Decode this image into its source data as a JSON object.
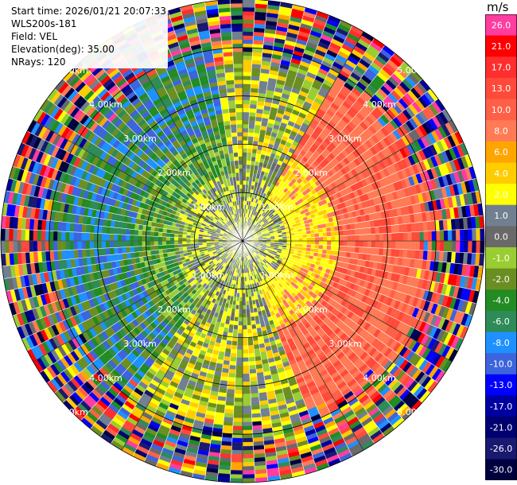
{
  "header": {
    "start_time": "Start time: 2026/01/21 20:07:33",
    "instrument": "WLS200s-181",
    "field": "Field: VEL",
    "elevation": "Elevation(deg): 35.00",
    "nrays": "NRays: 120"
  },
  "colorbar": {
    "unit": "m/s",
    "bins": [
      {
        "label": "26.0",
        "color": "#ff3ca0"
      },
      {
        "label": "21.0",
        "color": "#ff0000"
      },
      {
        "label": "17.0",
        "color": "#ff2e2e"
      },
      {
        "label": "13.0",
        "color": "#ff4a3a"
      },
      {
        "label": "10.0",
        "color": "#ff5f47"
      },
      {
        "label": "8.0",
        "color": "#ff7a55"
      },
      {
        "label": "6.0",
        "color": "#ffa500"
      },
      {
        "label": "4.0",
        "color": "#ffcc00"
      },
      {
        "label": "2.0",
        "color": "#ffff00"
      },
      {
        "label": "1.0",
        "color": "#708090"
      },
      {
        "label": "0.0",
        "color": "#696969"
      },
      {
        "label": "-1.0",
        "color": "#9acd32"
      },
      {
        "label": "-2.0",
        "color": "#6b8e23"
      },
      {
        "label": "-4.0",
        "color": "#228b22"
      },
      {
        "label": "-6.0",
        "color": "#2e8b57"
      },
      {
        "label": "-8.0",
        "color": "#1e90ff"
      },
      {
        "label": "-10.0",
        "color": "#3c64dc"
      },
      {
        "label": "-13.0",
        "color": "#0000ff"
      },
      {
        "label": "-17.0",
        "color": "#0000a0"
      },
      {
        "label": "-21.0",
        "color": "#000070"
      },
      {
        "label": "-26.0",
        "color": "#191970"
      },
      {
        "label": "-30.0",
        "color": "#000040"
      }
    ]
  },
  "chart_data": {
    "type": "heatmap",
    "projection": "polar-ppi",
    "nrays": 120,
    "max_range_km": 5.0,
    "range_rings_km": [
      1.0,
      2.0,
      3.0,
      4.0,
      5.0
    ],
    "ring_labels": [
      "1.00km",
      "2.00km",
      "3.00km",
      "4.00km",
      "5.00km"
    ],
    "ring_label_angles_deg": [
      45,
      135,
      225,
      315
    ],
    "spokes": 12,
    "velocity_unit": "m/s",
    "velocity_field_note": "near-range: yellow/olive/grey (-2 to 4 m/s); NW lobe green/blue; E/SE lobe orange/red; far range noisy (all colors)"
  }
}
